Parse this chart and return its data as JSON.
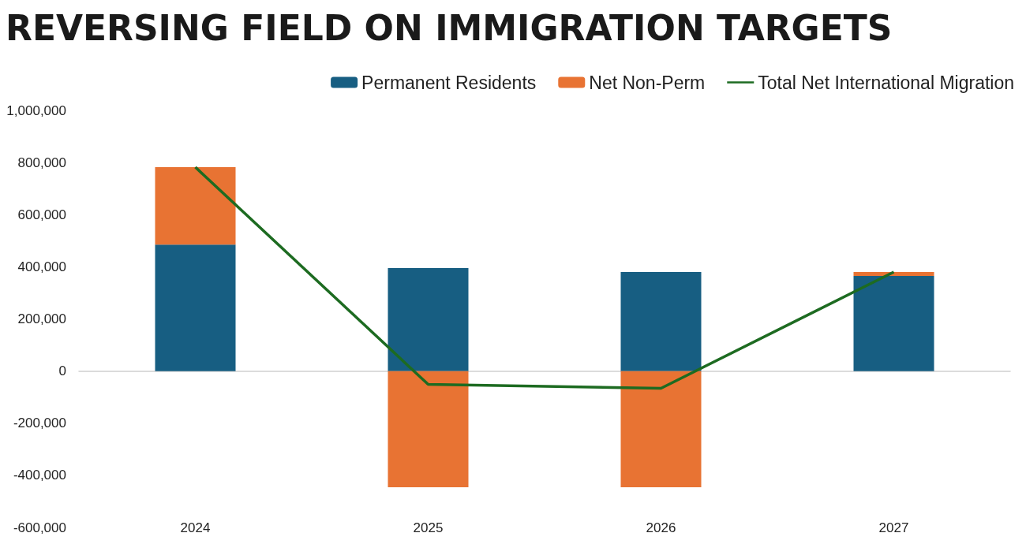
{
  "chart_data": {
    "type": "bar",
    "title": "REVERSING FIELD ON IMMIGRATION TARGETS",
    "categories": [
      "2024",
      "2025",
      "2026",
      "2027"
    ],
    "stacked": true,
    "series": [
      {
        "name": "Permanent Residents",
        "color": "#175e82",
        "values": [
          485000,
          395000,
          380000,
          365000
        ]
      },
      {
        "name": "Net Non-Perm",
        "color": "#e87333",
        "values": [
          297000,
          -446000,
          -446000,
          15000
        ]
      },
      {
        "name": "Total Net International Migration",
        "type": "line",
        "color": "#1d6b21",
        "values": [
          782000,
          -51000,
          -66000,
          380000
        ],
        "marker": "none",
        "line_style": "solid"
      }
    ],
    "ylim": [
      -600000,
      1000000
    ],
    "yticks": [
      {
        "value": -600000,
        "label": "-600,000"
      },
      {
        "value": -400000,
        "label": "-400,000"
      },
      {
        "value": -200000,
        "label": "-200,000"
      },
      0,
      {
        "value": 200000,
        "label": "200,000"
      },
      {
        "value": 400000,
        "label": "400,000"
      },
      {
        "value": 600000,
        "label": "600,000"
      },
      {
        "value": 800000,
        "label": "800,000"
      },
      {
        "value": 1000000,
        "label": "1,000,000"
      }
    ],
    "legend": "top right"
  }
}
